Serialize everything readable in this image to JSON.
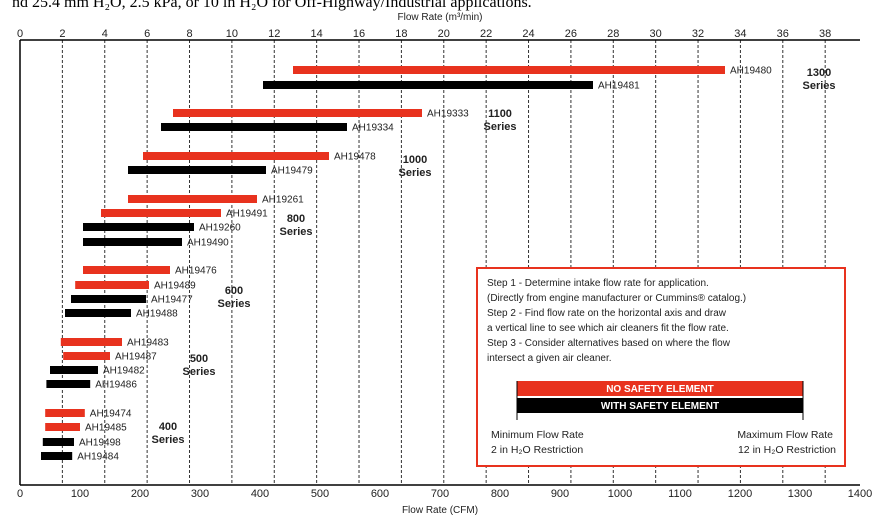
{
  "header_note": "nd 25.4 mm H₂O, 2.5 kPa, or 10 in H₂O for Off-Highway/Industrial applications.",
  "chart_data": {
    "type": "bar",
    "orientation": "horizontal-range",
    "title": "",
    "xlabel": "Flow Rate (CFM)",
    "x2label": "Flow Rate (m³/min)",
    "xlim": [
      0,
      1400
    ],
    "xticks": [
      "0",
      "100",
      "200",
      "300",
      "400",
      "500",
      "600",
      "700",
      "800",
      "900",
      "1000",
      "1100",
      "1200",
      "1300",
      "1400"
    ],
    "x2ticks": [
      "0",
      "2",
      "4",
      "6",
      "8",
      "10",
      "12",
      "14",
      "16",
      "18",
      "20",
      "22",
      "24",
      "26",
      "28",
      "30",
      "32",
      "34",
      "36",
      "38"
    ],
    "colors": {
      "no_safety": "#e8321e",
      "with_safety": "#000000",
      "legend_border": "#e8321e"
    },
    "bars": [
      {
        "label": "AH19480",
        "type": "no_safety",
        "min": 455,
        "max": 1175
      },
      {
        "label": "AH19481",
        "type": "with_safety",
        "min": 405,
        "max": 955
      },
      {
        "label": "AH19333",
        "type": "no_safety",
        "min": 255,
        "max": 670
      },
      {
        "label": "AH19334",
        "type": "with_safety",
        "min": 235,
        "max": 545
      },
      {
        "label": "AH19478",
        "type": "no_safety",
        "min": 205,
        "max": 515
      },
      {
        "label": "AH19479",
        "type": "with_safety",
        "min": 180,
        "max": 410
      },
      {
        "label": "AH19261",
        "type": "no_safety",
        "min": 180,
        "max": 395
      },
      {
        "label": "AH19491",
        "type": "no_safety",
        "min": 135,
        "max": 335
      },
      {
        "label": "AH19260",
        "type": "with_safety",
        "min": 105,
        "max": 290
      },
      {
        "label": "AH19490",
        "type": "with_safety",
        "min": 105,
        "max": 270
      },
      {
        "label": "AH19476",
        "type": "no_safety",
        "min": 105,
        "max": 250
      },
      {
        "label": "AH19489",
        "type": "no_safety",
        "min": 92,
        "max": 215
      },
      {
        "label": "AH19477",
        "type": "with_safety",
        "min": 85,
        "max": 210
      },
      {
        "label": "AH19488",
        "type": "with_safety",
        "min": 75,
        "max": 185
      },
      {
        "label": "AH19483",
        "type": "no_safety",
        "min": 68,
        "max": 170
      },
      {
        "label": "AH19487",
        "type": "no_safety",
        "min": 72,
        "max": 150
      },
      {
        "label": "AH19482",
        "type": "with_safety",
        "min": 50,
        "max": 130
      },
      {
        "label": "AH19486",
        "type": "with_safety",
        "min": 44,
        "max": 117
      },
      {
        "label": "AH19474",
        "type": "no_safety",
        "min": 42,
        "max": 108
      },
      {
        "label": "AH19485",
        "type": "no_safety",
        "min": 42,
        "max": 100
      },
      {
        "label": "AH19498",
        "type": "with_safety",
        "min": 38,
        "max": 90
      },
      {
        "label": "AH19484",
        "type": "with_safety",
        "min": 35,
        "max": 87
      }
    ],
    "series_labels": [
      {
        "line1": "1300",
        "line2": "Series"
      },
      {
        "line1": "1100",
        "line2": "Series"
      },
      {
        "line1": "1000",
        "line2": "Series"
      },
      {
        "line1": "800",
        "line2": "Series"
      },
      {
        "line1": "600",
        "line2": "Series"
      },
      {
        "line1": "500",
        "line2": "Series"
      },
      {
        "line1": "400",
        "line2": "Series"
      }
    ],
    "legend": {
      "steps": [
        "Step 1 - Determine intake flow rate for application.",
        "(Directly from engine manufacturer or Cummins® catalog.)",
        "Step 2 - Find flow rate on the horizontal axis and draw",
        "a vertical line to see which air cleaners fit the flow rate.",
        "Step 3 - Consider alternatives based on where the flow",
        "intersect a given air cleaner."
      ],
      "no_safety_label": "NO SAFETY ELEMENT",
      "with_safety_label": "WITH SAFETY ELEMENT",
      "min_flow_title": "Minimum Flow Rate",
      "min_flow_sub": "2 in H₂O Restriction",
      "max_flow_title": "Maximum Flow Rate",
      "max_flow_sub": "12 in H₂O Restriction"
    }
  }
}
